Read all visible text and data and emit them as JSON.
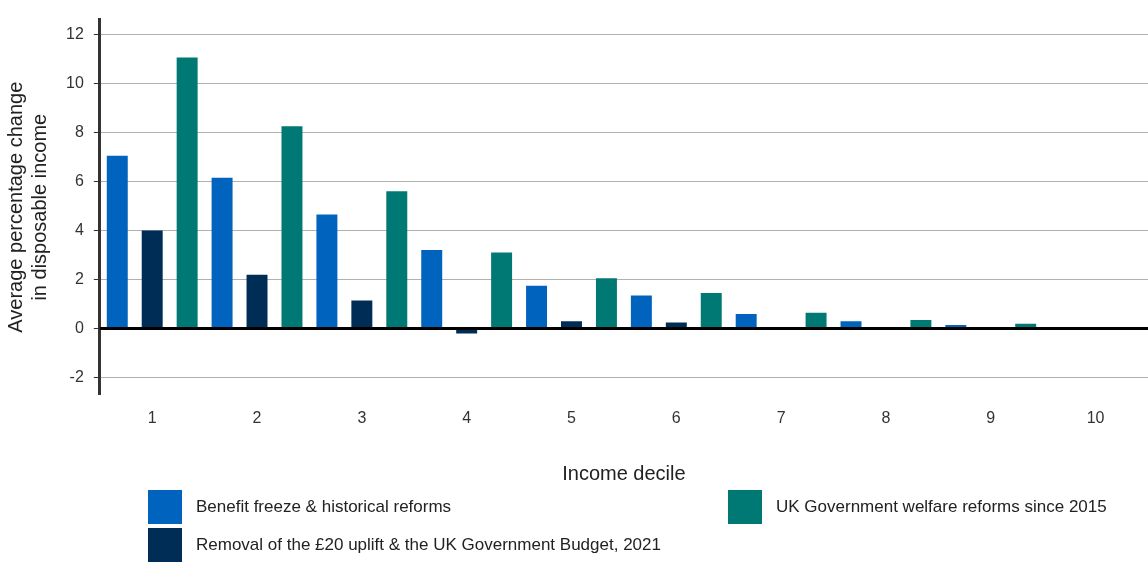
{
  "chart_data": {
    "type": "bar",
    "xlabel": "Income decile",
    "ylabel": "Average percentage change in disposable income",
    "categories": [
      "1",
      "2",
      "3",
      "4",
      "5",
      "6",
      "7",
      "8",
      "9",
      "10"
    ],
    "series": [
      {
        "name": "Benefit freeze & historical reforms",
        "color": "#0063be",
        "values": [
          7.05,
          6.15,
          4.65,
          3.2,
          1.75,
          1.35,
          0.6,
          0.3,
          0.15,
          0
        ]
      },
      {
        "name": "Removal of the £20 uplift & the UK Government Budget, 2021",
        "color": "#002d56",
        "values": [
          4.0,
          2.2,
          1.15,
          -0.2,
          0.3,
          0.25,
          0,
          0,
          0,
          0
        ]
      },
      {
        "name": "UK Government welfare reforms since 2015",
        "color": "#007873",
        "values": [
          11.05,
          8.25,
          5.6,
          3.1,
          2.05,
          1.45,
          0.65,
          0.35,
          0.2,
          0
        ]
      }
    ],
    "ylim": [
      -2.7,
      12.6
    ],
    "yticks": [
      -2,
      0,
      2,
      4,
      6,
      8,
      10,
      12
    ],
    "grid": "y",
    "legend": "bottom",
    "ref_lines": [
      {
        "axis": "y",
        "value": 0,
        "color": "#000000"
      }
    ]
  }
}
